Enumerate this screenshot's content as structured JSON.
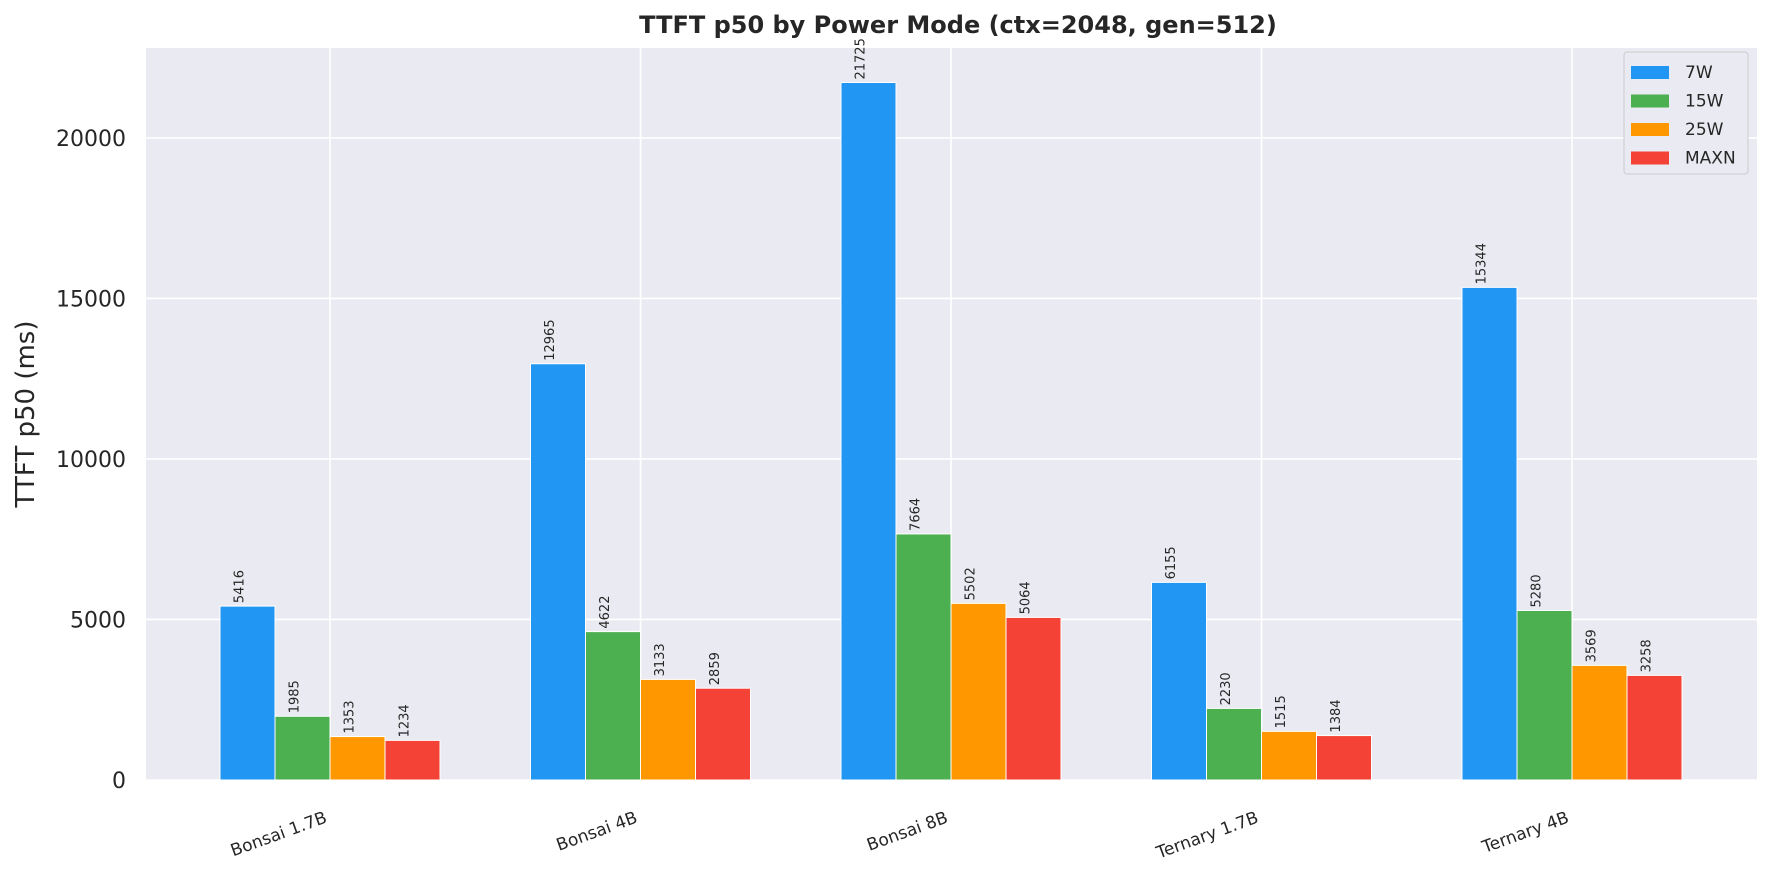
{
  "chart_data": {
    "type": "bar",
    "title": "TTFT p50 by Power Mode (ctx=2048, gen=512)",
    "xlabel": "",
    "ylabel": "TTFT p50 (ms)",
    "ylim": [
      0,
      22800
    ],
    "yticks": [
      0,
      5000,
      10000,
      15000,
      20000
    ],
    "grid": true,
    "legend_position": "top-right",
    "categories": [
      "Bonsai 1.7B",
      "Bonsai 4B",
      "Bonsai 8B",
      "Ternary 1.7B",
      "Ternary 4B"
    ],
    "series": [
      {
        "name": "7W",
        "color": "#2196f3",
        "values": [
          5416,
          12965,
          21725,
          6155,
          15344
        ]
      },
      {
        "name": "15W",
        "color": "#4caf50",
        "values": [
          1985,
          4622,
          7664,
          2230,
          5280
        ]
      },
      {
        "name": "25W",
        "color": "#ff9800",
        "values": [
          1353,
          3133,
          5502,
          1515,
          3569
        ]
      },
      {
        "name": "MAXN",
        "color": "#f44336",
        "values": [
          1234,
          2859,
          5064,
          1384,
          3258
        ]
      }
    ]
  }
}
